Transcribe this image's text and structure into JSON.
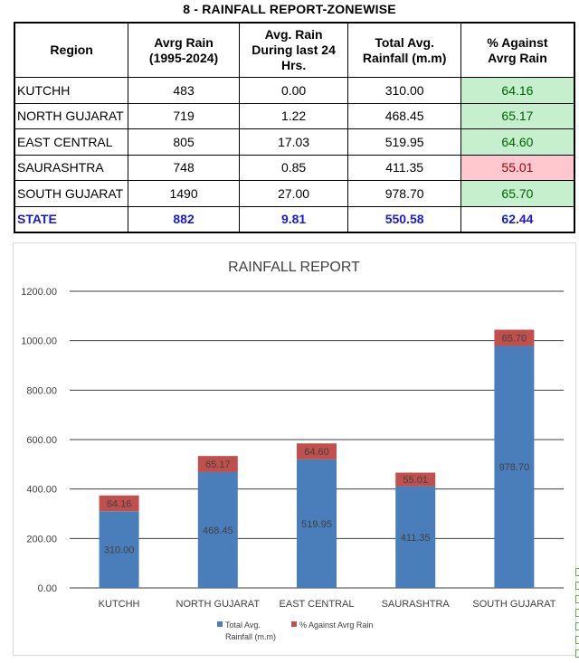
{
  "report_title": "8 - RAINFALL REPORT-ZONEWISE",
  "table": {
    "headers": [
      "Region",
      "Avrg Rain\n(1995-2024)",
      "Avg. Rain\nDuring last 24\nHrs.",
      "Total Avg.\nRainfall (m.m)",
      "% Against\nAvrg Rain"
    ],
    "rows": [
      {
        "region": "KUTCHH",
        "avrg": "483",
        "last24": "0.00",
        "total": "310.00",
        "pct": "64.16",
        "status": "green"
      },
      {
        "region": "NORTH GUJARAT",
        "avrg": "719",
        "last24": "1.22",
        "total": "468.45",
        "pct": "65.17",
        "status": "green"
      },
      {
        "region": "EAST CENTRAL",
        "avrg": "805",
        "last24": "17.03",
        "total": "519.95",
        "pct": "64.60",
        "status": "green"
      },
      {
        "region": "SAURASHTRA",
        "avrg": "748",
        "last24": "0.85",
        "total": "411.35",
        "pct": "55.01",
        "status": "red"
      },
      {
        "region": "SOUTH GUJARAT",
        "avrg": "1490",
        "last24": "27.00",
        "total": "978.70",
        "pct": "65.70",
        "status": "green"
      }
    ],
    "state": {
      "region": "STATE",
      "avrg": "882",
      "last24": "9.81",
      "total": "550.58",
      "pct": "62.44"
    }
  },
  "colors": {
    "green_cell": "#c6efce",
    "red_cell": "#ffc7ce",
    "green_text": "#006100",
    "red_text": "#9c0006",
    "state_text": "#1a1ad6",
    "bar_total": "#4a7ebb",
    "bar_pct": "#c0504d"
  },
  "chart_data": {
    "type": "bar",
    "stacked": true,
    "title": "RAINFALL REPORT",
    "categories": [
      "KUTCHH",
      "NORTH GUJARAT",
      "EAST CENTRAL",
      "SAURASHTRA",
      "SOUTH GUJARAT"
    ],
    "series": [
      {
        "name": "Total Avg.\nRainfall (m.m)",
        "values": [
          310.0,
          468.45,
          519.95,
          411.35,
          978.7
        ],
        "labels": [
          "310.00",
          "468.45",
          "519.95",
          "411.35",
          "978.70"
        ]
      },
      {
        "name": "% Against Avrg Rain",
        "values": [
          64.16,
          65.17,
          64.6,
          55.01,
          65.7
        ],
        "labels": [
          "64.16",
          "65.17",
          "64.60",
          "55.01",
          "65.70"
        ]
      }
    ],
    "yticks": [
      "0.00",
      "200.00",
      "400.00",
      "600.00",
      "800.00",
      "1000.00",
      "1200.00"
    ],
    "ylim": [
      0,
      1200
    ],
    "grid": true,
    "legend": "bottom"
  }
}
